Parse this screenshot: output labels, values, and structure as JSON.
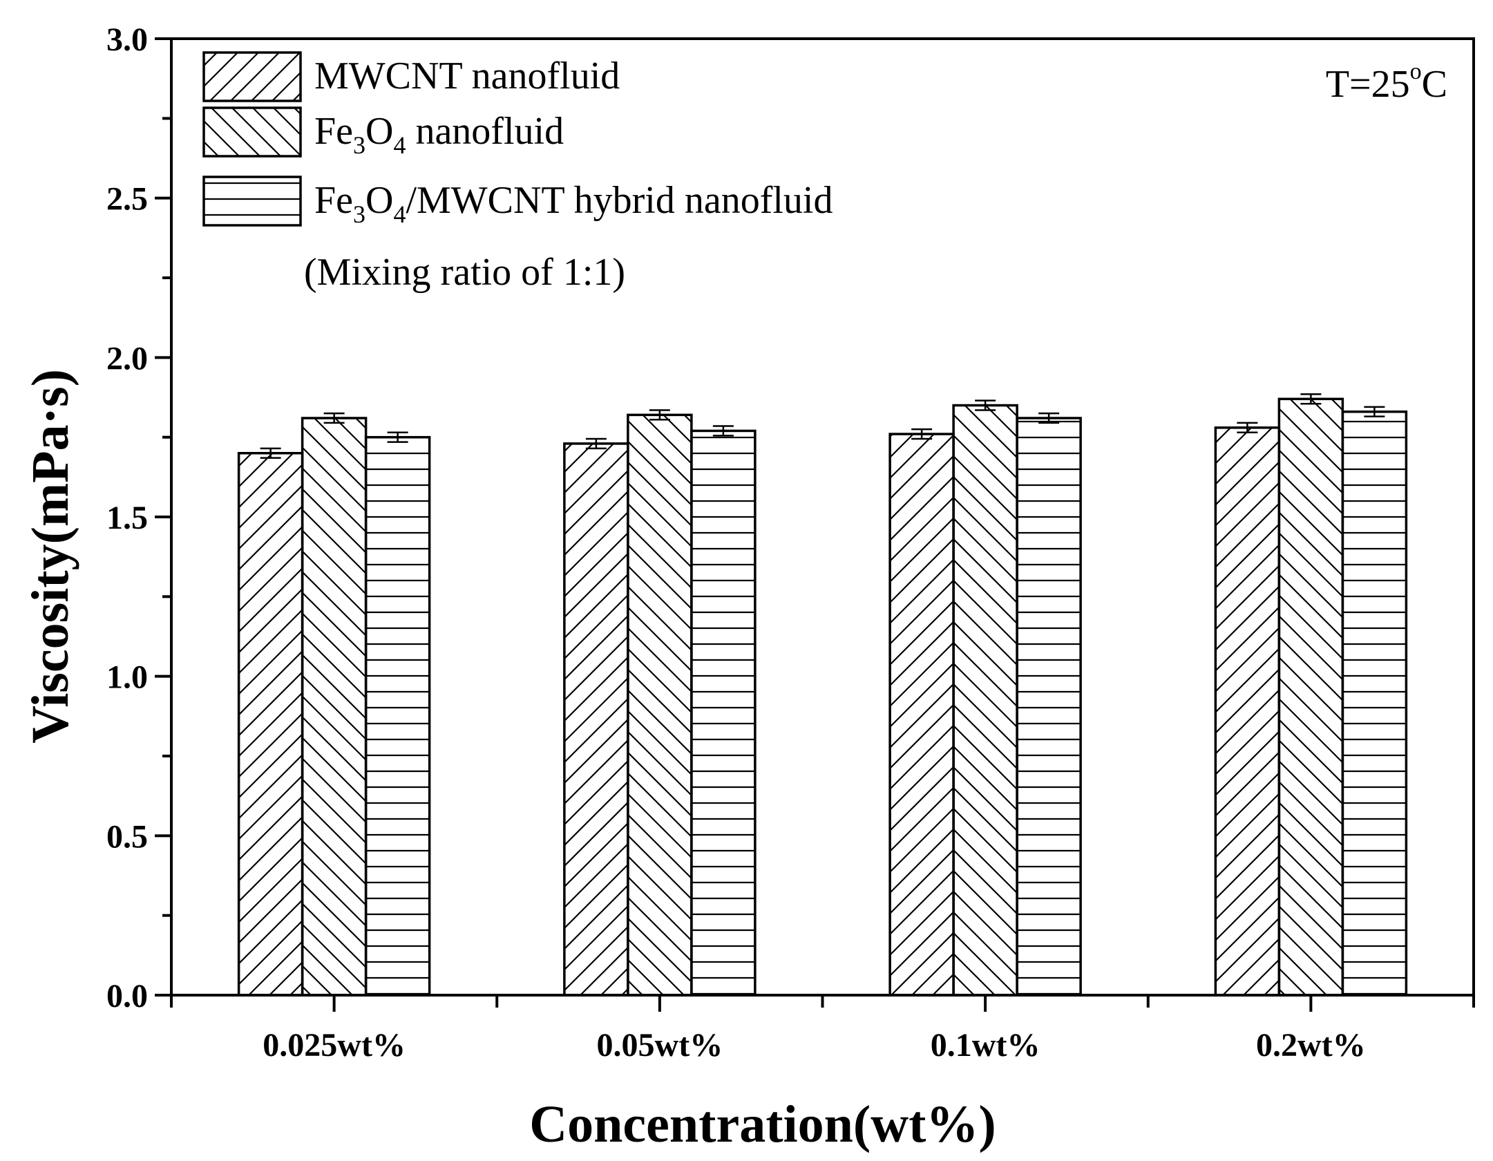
{
  "chart_data": {
    "type": "bar",
    "title": "",
    "xlabel": "Concentration(wt%)",
    "ylabel": "Viscosity(mPa·s)",
    "ylim": [
      0.0,
      3.0
    ],
    "yticks": [
      "0.0",
      "0.5",
      "1.0",
      "1.5",
      "2.0",
      "2.5",
      "3.0"
    ],
    "yticks_values": [
      0.0,
      0.5,
      1.0,
      1.5,
      2.0,
      2.5,
      3.0
    ],
    "categories": [
      "0.025wt%",
      "0.05wt%",
      "0.1wt%",
      "0.2wt%"
    ],
    "series": [
      {
        "name": "MWCNT nanofluid",
        "pattern": "forward-diagonal",
        "values": [
          1.7,
          1.73,
          1.76,
          1.78
        ],
        "errors": [
          0.015,
          0.015,
          0.015,
          0.015
        ]
      },
      {
        "name": "Fe3O4 nanofluid",
        "pattern": "back-diagonal",
        "values": [
          1.81,
          1.82,
          1.85,
          1.87
        ],
        "errors": [
          0.015,
          0.015,
          0.015,
          0.015
        ]
      },
      {
        "name": "Fe3O4/MWCNT hybrid nanofluid",
        "pattern": "horizontal",
        "values": [
          1.75,
          1.77,
          1.81,
          1.83
        ],
        "errors": [
          0.015,
          0.015,
          0.015,
          0.015
        ]
      }
    ],
    "legend": {
      "placement": "top-left",
      "entries": [
        {
          "parts": [
            {
              "t": "MWCNT nanofluid"
            }
          ]
        },
        {
          "parts": [
            {
              "t": "Fe"
            },
            {
              "t": "3",
              "sub": true
            },
            {
              "t": "O"
            },
            {
              "t": "4",
              "sub": true
            },
            {
              "t": " nanofluid"
            }
          ]
        },
        {
          "parts": [
            {
              "t": "Fe"
            },
            {
              "t": "3",
              "sub": true
            },
            {
              "t": "O"
            },
            {
              "t": "4",
              "sub": true
            },
            {
              "t": "/MWCNT hybrid nanofluid"
            }
          ]
        }
      ],
      "note": "(Mixing ratio of 1:1)"
    },
    "annotation": {
      "text": "T=25",
      "degree": "o",
      "unit": "C",
      "placement": "top-right"
    }
  }
}
